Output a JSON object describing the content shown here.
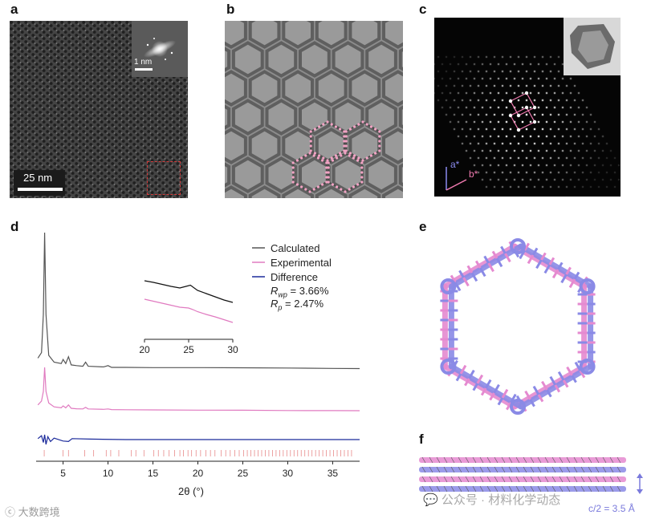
{
  "panels": {
    "a": {
      "label": "a",
      "scale_bar": "25 nm",
      "inset_scale": "1 nm"
    },
    "b": {
      "label": "b"
    },
    "c": {
      "label": "c",
      "axis_a": "a*",
      "axis_b": "b*"
    },
    "d": {
      "label": "d"
    },
    "e": {
      "label": "e"
    },
    "f": {
      "label": "f",
      "spacing_label": "c/2 = 3.5 Å"
    }
  },
  "chart_data": {
    "type": "line",
    "xlabel": "2θ (°)",
    "xlim": [
      2,
      38
    ],
    "x_ticks": [
      5,
      10,
      15,
      20,
      25,
      30,
      35
    ],
    "legend": {
      "placement": "top-right",
      "entries": [
        {
          "name": "Calculated",
          "color": "#555555"
        },
        {
          "name": "Experimental",
          "color": "#e07ac0"
        },
        {
          "name": "Difference",
          "color": "#1b2a9b"
        }
      ],
      "rwp": "= 3.66%",
      "rp": "= 2.47%"
    },
    "series": [
      {
        "name": "Calculated",
        "color": "#555555",
        "x": [
          2.2,
          2.6,
          2.8,
          2.95,
          3.1,
          3.4,
          4.0,
          4.8,
          5.0,
          5.3,
          5.6,
          5.9,
          6.5,
          7.2,
          7.5,
          7.8,
          9.5,
          10.0,
          10.4,
          12,
          15,
          20,
          25,
          30,
          35,
          38
        ],
        "y": [
          8,
          12,
          40,
          100,
          40,
          10,
          5,
          4,
          7,
          4,
          9,
          3,
          2.5,
          2,
          5,
          2,
          1.5,
          2.5,
          1.2,
          1.2,
          1,
          1,
          0.9,
          0.7,
          0.4,
          0.3
        ]
      },
      {
        "name": "Experimental",
        "color": "#e07ac0",
        "x": [
          2.2,
          2.6,
          2.8,
          2.95,
          3.1,
          3.4,
          4.0,
          4.8,
          5.0,
          5.3,
          5.6,
          5.9,
          6.5,
          7.2,
          7.5,
          7.8,
          9.5,
          10.0,
          10.4,
          12,
          15,
          20,
          25,
          30,
          35,
          38
        ],
        "y": [
          6,
          10,
          20,
          45,
          20,
          8,
          4,
          3,
          5,
          3,
          6,
          2.5,
          2,
          1.8,
          3.5,
          1.8,
          1.4,
          1.8,
          1.2,
          1.0,
          0.8,
          0.6,
          0.5,
          0.2,
          0.1,
          0
        ]
      },
      {
        "name": "Difference",
        "color": "#1b2a9b",
        "x": [
          2.2,
          2.6,
          2.8,
          2.95,
          3.1,
          3.3,
          3.6,
          4.0,
          5.0,
          5.6,
          6.0,
          8,
          12,
          20,
          30,
          38
        ],
        "y": [
          0.2,
          0.8,
          -0.6,
          1.0,
          -1.0,
          0.6,
          -0.4,
          0.3,
          -0.3,
          -0.4,
          0.2,
          0.1,
          0,
          0,
          0,
          0
        ]
      }
    ],
    "inset": {
      "xlim": [
        20,
        30
      ],
      "x_ticks": [
        20,
        25,
        30
      ],
      "calculated": {
        "x": [
          20,
          21,
          22,
          23,
          24,
          24.7,
          25.2,
          26,
          27,
          28,
          29,
          30
        ],
        "y": [
          10,
          9.6,
          9.1,
          8.6,
          8.2,
          8.6,
          8.9,
          7.6,
          6.8,
          6.0,
          5.2,
          4.6
        ]
      },
      "experimental": {
        "x": [
          20,
          21,
          22,
          23,
          24,
          25,
          25.5,
          26,
          27,
          28,
          29,
          30
        ],
        "y": [
          7.0,
          6.5,
          6.0,
          5.5,
          5.0,
          4.8,
          4.4,
          3.9,
          3.2,
          2.6,
          1.9,
          1.2
        ]
      }
    },
    "reflection_ticks": [
      2.9,
      5.0,
      5.6,
      7.4,
      8.4,
      9.8,
      10.3,
      11.2,
      12.6,
      13.1,
      14.0,
      15.1,
      15.6,
      16.2,
      16.8,
      17.4,
      18.0,
      18.4,
      18.9,
      19.3,
      19.8,
      20.3,
      20.9,
      21.4,
      21.9,
      22.6,
      23.1,
      23.6,
      24.1,
      24.6,
      25.1,
      25.5,
      25.9,
      26.3,
      26.7,
      27.1,
      27.5,
      27.9,
      28.3,
      28.7,
      29.1,
      29.5,
      29.9,
      30.3,
      30.7,
      31.1,
      31.5,
      31.9,
      32.3,
      32.7,
      33.1,
      33.5,
      33.9,
      34.3,
      34.7,
      35.1,
      35.5,
      35.9,
      36.3,
      36.7,
      37.1
    ]
  },
  "watermarks": {
    "left": "大数跨境",
    "right": "公众号 · 材料化学动态"
  }
}
